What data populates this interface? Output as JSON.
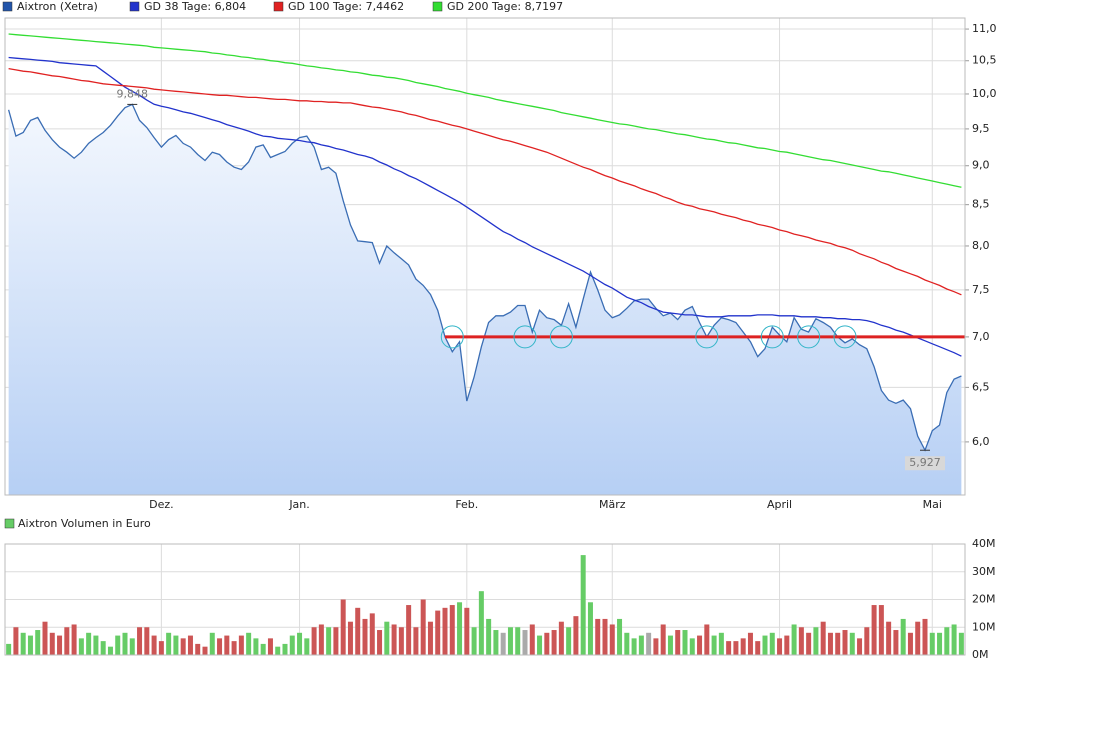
{
  "chart_data": [
    {
      "type": "line",
      "log_scale": true,
      "grid": true,
      "categories": [
        null,
        null,
        null,
        null,
        null,
        null,
        null,
        null,
        null,
        null,
        null,
        null,
        null,
        null,
        null,
        null,
        null,
        null,
        null,
        null,
        null,
        "Dez.",
        null,
        null,
        null,
        null,
        null,
        null,
        null,
        null,
        null,
        null,
        null,
        null,
        null,
        null,
        null,
        null,
        null,
        null,
        "Jan.",
        null,
        null,
        null,
        null,
        null,
        null,
        null,
        null,
        null,
        null,
        null,
        null,
        null,
        null,
        null,
        null,
        null,
        null,
        null,
        null,
        null,
        null,
        "Feb.",
        null,
        null,
        null,
        null,
        null,
        null,
        null,
        null,
        null,
        null,
        null,
        null,
        null,
        null,
        null,
        null,
        null,
        null,
        null,
        "März",
        null,
        null,
        null,
        null,
        null,
        null,
        null,
        null,
        null,
        null,
        null,
        null,
        null,
        null,
        null,
        null,
        null,
        null,
        null,
        null,
        null,
        null,
        "April",
        null,
        null,
        null,
        null,
        null,
        null,
        null,
        null,
        null,
        null,
        null,
        null,
        null,
        null,
        null,
        null,
        null,
        null,
        null,
        null,
        "Mai",
        null,
        null,
        null,
        null
      ],
      "ylim": [
        5.55,
        11.18
      ],
      "yticks": [
        {
          "value": 6,
          "label": "6,0"
        },
        {
          "value": 6.5,
          "label": "6,5"
        },
        {
          "value": 7,
          "label": "7,0"
        },
        {
          "value": 7.5,
          "label": "7,5"
        },
        {
          "value": 8,
          "label": "8,0"
        },
        {
          "value": 8.5,
          "label": "8,5"
        },
        {
          "value": 9,
          "label": "9,0"
        },
        {
          "value": 9.5,
          "label": "9,5"
        },
        {
          "value": 10,
          "label": "10,0"
        },
        {
          "value": 10.5,
          "label": "10,5"
        },
        {
          "value": 11,
          "label": "11,0"
        }
      ],
      "series": [
        {
          "name": "Aixtron (Xetra)",
          "color": "#3a6db4",
          "legend_color": "#2255aa",
          "area": true,
          "values": [
            9.77,
            9.4,
            9.45,
            9.62,
            9.66,
            9.48,
            9.35,
            9.25,
            9.18,
            9.1,
            9.18,
            9.3,
            9.38,
            9.45,
            9.55,
            9.68,
            9.8,
            9.848,
            9.62,
            9.52,
            9.38,
            9.25,
            9.35,
            9.41,
            9.3,
            9.25,
            9.15,
            9.07,
            9.18,
            9.15,
            9.05,
            8.98,
            8.95,
            9.05,
            9.25,
            9.28,
            9.11,
            9.15,
            9.19,
            9.3,
            9.38,
            9.4,
            9.25,
            8.95,
            8.98,
            8.9,
            8.55,
            8.25,
            8.06,
            8.05,
            8.04,
            7.8,
            8.0,
            7.92,
            7.85,
            7.78,
            7.62,
            7.55,
            7.45,
            7.28,
            7.0,
            6.85,
            6.95,
            6.37,
            6.6,
            6.9,
            7.15,
            7.22,
            7.22,
            7.26,
            7.33,
            7.33,
            7.05,
            7.28,
            7.2,
            7.18,
            7.12,
            7.35,
            7.1,
            7.4,
            7.7,
            7.5,
            7.28,
            7.2,
            7.23,
            7.3,
            7.38,
            7.4,
            7.4,
            7.3,
            7.22,
            7.25,
            7.18,
            7.28,
            7.32,
            7.15,
            7.0,
            7.12,
            7.2,
            7.18,
            7.15,
            7.05,
            6.95,
            6.8,
            6.88,
            7.1,
            7.02,
            6.95,
            7.2,
            7.08,
            7.05,
            7.19,
            7.15,
            7.1,
            7.0,
            6.94,
            6.98,
            6.92,
            6.88,
            6.7,
            6.47,
            6.38,
            6.35,
            6.38,
            6.3,
            6.05,
            5.927,
            6.1,
            6.15,
            6.45,
            6.58,
            6.61
          ]
        },
        {
          "name": "GD 38 Tage: 6,804",
          "color": "#2233cc",
          "values": [
            10.55,
            10.54,
            10.53,
            10.52,
            10.51,
            10.5,
            10.49,
            10.47,
            10.46,
            10.45,
            10.44,
            10.43,
            10.42,
            10.34,
            10.26,
            10.18,
            10.1,
            10.04,
            9.98,
            9.91,
            9.85,
            9.82,
            9.8,
            9.77,
            9.74,
            9.72,
            9.69,
            9.66,
            9.63,
            9.6,
            9.56,
            9.53,
            9.5,
            9.47,
            9.43,
            9.4,
            9.39,
            9.37,
            9.36,
            9.35,
            9.34,
            9.32,
            9.31,
            9.28,
            9.26,
            9.23,
            9.21,
            9.18,
            9.15,
            9.13,
            9.1,
            9.05,
            9.01,
            8.96,
            8.92,
            8.87,
            8.83,
            8.78,
            8.73,
            8.68,
            8.63,
            8.58,
            8.53,
            8.47,
            8.41,
            8.35,
            8.29,
            8.23,
            8.17,
            8.13,
            8.08,
            8.04,
            7.99,
            7.95,
            7.91,
            7.87,
            7.83,
            7.79,
            7.75,
            7.71,
            7.66,
            7.61,
            7.56,
            7.52,
            7.47,
            7.42,
            7.39,
            7.36,
            7.32,
            7.29,
            7.26,
            7.25,
            7.24,
            7.23,
            7.23,
            7.22,
            7.21,
            7.21,
            7.21,
            7.22,
            7.22,
            7.22,
            7.22,
            7.23,
            7.23,
            7.23,
            7.22,
            7.22,
            7.22,
            7.21,
            7.21,
            7.21,
            7.2,
            7.2,
            7.19,
            7.19,
            7.18,
            7.18,
            7.17,
            7.15,
            7.12,
            7.1,
            7.07,
            7.05,
            7.02,
            6.99,
            6.96,
            6.93,
            6.9,
            6.87,
            6.84,
            6.804
          ]
        },
        {
          "name": "GD 100 Tage: 7,4462",
          "color": "#e02222",
          "values": [
            10.38,
            10.36,
            10.34,
            10.33,
            10.31,
            10.29,
            10.27,
            10.26,
            10.24,
            10.22,
            10.2,
            10.19,
            10.17,
            10.15,
            10.14,
            10.13,
            10.12,
            10.11,
            10.1,
            10.09,
            10.07,
            10.06,
            10.05,
            10.04,
            10.03,
            10.02,
            10.01,
            10.0,
            9.99,
            9.98,
            9.98,
            9.97,
            9.96,
            9.95,
            9.95,
            9.94,
            9.93,
            9.92,
            9.92,
            9.91,
            9.9,
            9.9,
            9.89,
            9.89,
            9.88,
            9.88,
            9.87,
            9.87,
            9.85,
            9.83,
            9.81,
            9.8,
            9.78,
            9.76,
            9.74,
            9.71,
            9.69,
            9.66,
            9.63,
            9.61,
            9.58,
            9.55,
            9.53,
            9.5,
            9.47,
            9.44,
            9.41,
            9.38,
            9.35,
            9.33,
            9.3,
            9.27,
            9.24,
            9.21,
            9.18,
            9.14,
            9.1,
            9.06,
            9.02,
            8.98,
            8.95,
            8.91,
            8.87,
            8.84,
            8.8,
            8.77,
            8.74,
            8.7,
            8.67,
            8.64,
            8.6,
            8.57,
            8.53,
            8.5,
            8.48,
            8.45,
            8.43,
            8.41,
            8.38,
            8.36,
            8.34,
            8.31,
            8.29,
            8.26,
            8.24,
            8.22,
            8.19,
            8.17,
            8.14,
            8.12,
            8.1,
            8.07,
            8.05,
            8.03,
            8.0,
            7.98,
            7.95,
            7.91,
            7.88,
            7.85,
            7.81,
            7.78,
            7.74,
            7.71,
            7.68,
            7.65,
            7.61,
            7.58,
            7.55,
            7.51,
            7.48,
            7.4462
          ]
        },
        {
          "name": "GD 200 Tage: 8,7197",
          "color": "#33dd33",
          "values": [
            10.92,
            10.91,
            10.9,
            10.89,
            10.88,
            10.87,
            10.86,
            10.85,
            10.84,
            10.83,
            10.82,
            10.81,
            10.8,
            10.79,
            10.78,
            10.77,
            10.76,
            10.75,
            10.74,
            10.73,
            10.71,
            10.7,
            10.69,
            10.68,
            10.67,
            10.66,
            10.65,
            10.64,
            10.62,
            10.61,
            10.59,
            10.58,
            10.56,
            10.55,
            10.53,
            10.52,
            10.5,
            10.49,
            10.47,
            10.46,
            10.44,
            10.42,
            10.41,
            10.39,
            10.38,
            10.36,
            10.35,
            10.33,
            10.32,
            10.3,
            10.28,
            10.27,
            10.25,
            10.24,
            10.22,
            10.2,
            10.17,
            10.15,
            10.13,
            10.11,
            10.08,
            10.06,
            10.04,
            10.01,
            9.99,
            9.97,
            9.95,
            9.92,
            9.9,
            9.88,
            9.86,
            9.84,
            9.82,
            9.8,
            9.78,
            9.76,
            9.73,
            9.71,
            9.69,
            9.67,
            9.65,
            9.63,
            9.61,
            9.59,
            9.57,
            9.56,
            9.54,
            9.52,
            9.5,
            9.49,
            9.47,
            9.45,
            9.43,
            9.42,
            9.4,
            9.38,
            9.36,
            9.35,
            9.33,
            9.31,
            9.3,
            9.28,
            9.26,
            9.24,
            9.23,
            9.21,
            9.19,
            9.18,
            9.16,
            9.14,
            9.12,
            9.1,
            9.08,
            9.07,
            9.05,
            9.03,
            9.01,
            8.99,
            8.97,
            8.95,
            8.93,
            8.92,
            8.9,
            8.88,
            8.86,
            8.84,
            8.82,
            8.8,
            8.78,
            8.76,
            8.74,
            8.7197
          ]
        }
      ],
      "annotations": [
        {
          "value": 9.848,
          "label": "9,848"
        },
        {
          "value": 5.927,
          "label": "5,927"
        }
      ],
      "support_line": {
        "value": 7,
        "from_index": 60,
        "color": "#dd2222"
      },
      "touches": [
        61,
        71,
        76,
        96,
        105,
        110,
        115
      ],
      "touch_color": "#33b5c8"
    },
    {
      "type": "bar",
      "grid": true,
      "series": [
        {
          "name": "Aixtron Volumen in Euro",
          "color": "#66cc66",
          "values": [
            4,
            10,
            8,
            7,
            9,
            12,
            8,
            7,
            10,
            11,
            6,
            8,
            7,
            5,
            3,
            7,
            8,
            6,
            10,
            10,
            7,
            5,
            8,
            7,
            6,
            7,
            4,
            3,
            8,
            6,
            7,
            5,
            7,
            8,
            6,
            4,
            6,
            3,
            4,
            7,
            8,
            6,
            10,
            11,
            10,
            10,
            20,
            12,
            17,
            13,
            15,
            9,
            12,
            11,
            10,
            18,
            10,
            20,
            12,
            16,
            17,
            18,
            19,
            17,
            10,
            23,
            13,
            9,
            8,
            10,
            10,
            9,
            11,
            7,
            8,
            9,
            12,
            10,
            14,
            36,
            19,
            13,
            13,
            11,
            13,
            8,
            6,
            7,
            8,
            6,
            11,
            7,
            9,
            9,
            6,
            7,
            11,
            7,
            8,
            5,
            5,
            6,
            8,
            5,
            7,
            8,
            6,
            7,
            11,
            10,
            8,
            10,
            12,
            8,
            8,
            9,
            8,
            6,
            10,
            18,
            18,
            12,
            9,
            13,
            8,
            12,
            13,
            8,
            8,
            10,
            11,
            8
          ]
        }
      ],
      "up_color": "#66cc66",
      "down_color": "#cc5555",
      "flat_color": "#aaaaaa",
      "ylim": [
        0,
        40
      ],
      "yticks": [
        {
          "value": 0,
          "label": "0M"
        },
        {
          "value": 10,
          "label": "10M"
        },
        {
          "value": 20,
          "label": "20M"
        },
        {
          "value": 30,
          "label": "30M"
        },
        {
          "value": 40,
          "label": "40M"
        }
      ]
    }
  ]
}
